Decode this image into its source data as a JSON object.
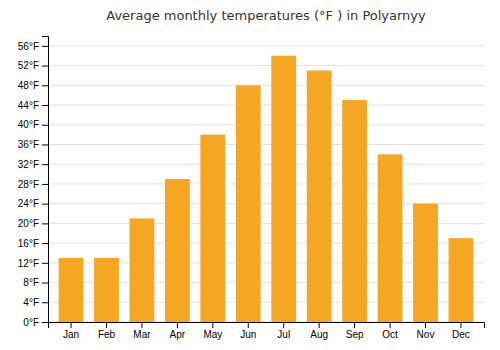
{
  "chart_data": {
    "type": "bar",
    "title": "Average monthly temperatures (°F ) in Polyarnyy",
    "categories": [
      "Jan",
      "Feb",
      "Mar",
      "Apr",
      "May",
      "Jun",
      "Jul",
      "Aug",
      "Sep",
      "Oct",
      "Nov",
      "Dec"
    ],
    "values": [
      13,
      13,
      21,
      29,
      38,
      48,
      54,
      51,
      45,
      34,
      24,
      17
    ],
    "color": "#F5A623",
    "ylim": [
      0,
      58
    ],
    "yticks": [
      {
        "value": 0,
        "label": "0°F"
      },
      {
        "value": 4,
        "label": "4°F"
      },
      {
        "value": 8,
        "label": "8°F"
      },
      {
        "value": 12,
        "label": "12°F"
      },
      {
        "value": 16,
        "label": "16°F"
      },
      {
        "value": 20,
        "label": "20°F"
      },
      {
        "value": 24,
        "label": "24°F"
      },
      {
        "value": 28,
        "label": "28°F"
      },
      {
        "value": 32,
        "label": "32°F"
      },
      {
        "value": 36,
        "label": "36°F"
      },
      {
        "value": 40,
        "label": "40°F"
      },
      {
        "value": 44,
        "label": "44°F"
      },
      {
        "value": 48,
        "label": "48°F"
      },
      {
        "value": 52,
        "label": "52°F"
      },
      {
        "value": 56,
        "label": "56°F"
      }
    ],
    "grid": true
  }
}
